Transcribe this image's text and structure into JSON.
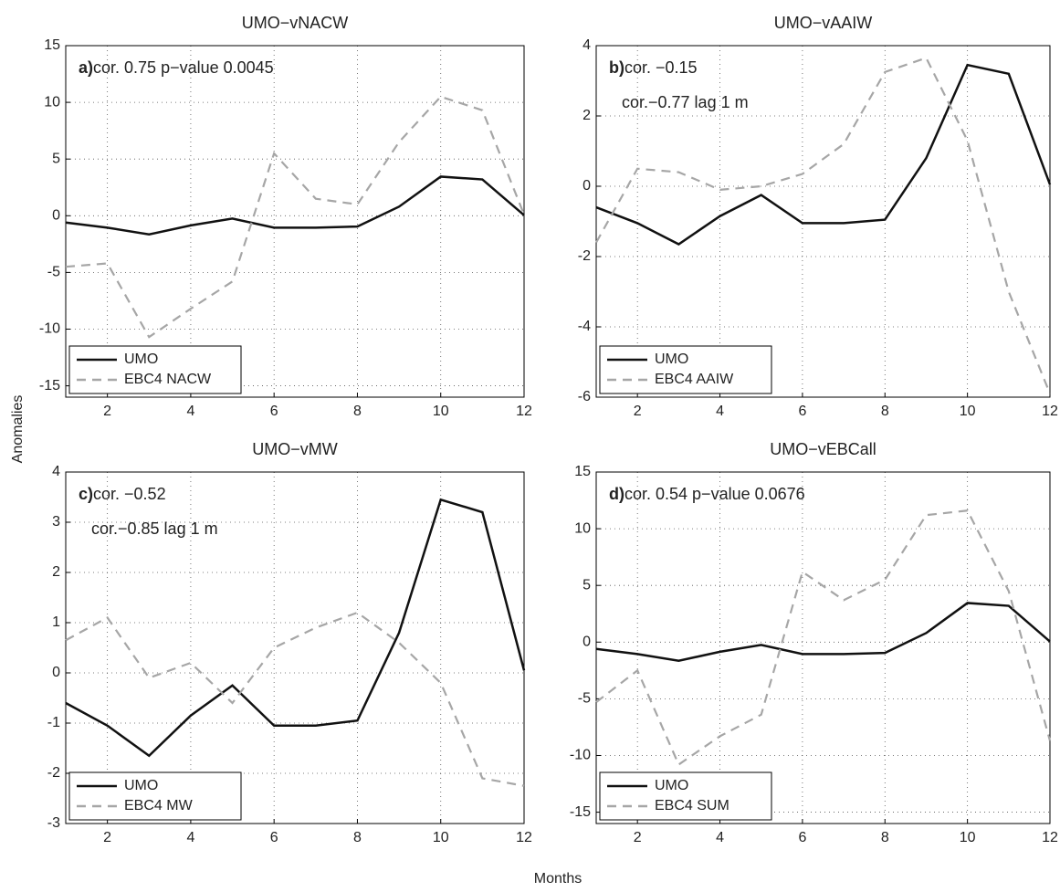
{
  "xlabel": "Months",
  "ylabel": "Anomalies",
  "chart_data": [
    {
      "type": "line",
      "title": "UMO−vNACW",
      "panel_label": "a)",
      "annotations": [
        "cor. 0.75 p−value 0.0045"
      ],
      "x": [
        1,
        2,
        3,
        4,
        5,
        6,
        7,
        8,
        9,
        10,
        11,
        12
      ],
      "xlim": [
        1,
        12
      ],
      "xticks": [
        2,
        4,
        6,
        8,
        10,
        12
      ],
      "ylim": [
        -16,
        15
      ],
      "yticks": [
        -15,
        -10,
        -5,
        0,
        5,
        10,
        15
      ],
      "grid": true,
      "legend": "lower left",
      "series": [
        {
          "name": "UMO",
          "color": "#111111",
          "linestyle": "solid",
          "values": [
            -0.6,
            -1.05,
            -1.65,
            -0.85,
            -0.25,
            -1.05,
            -1.05,
            -0.95,
            0.8,
            3.45,
            3.2,
            0.05
          ]
        },
        {
          "name": "EBC4 NACW",
          "color": "#a6a6a6",
          "linestyle": "dashed",
          "values": [
            -4.5,
            -4.2,
            -10.7,
            -8.2,
            -5.8,
            5.5,
            1.5,
            1.0,
            6.5,
            10.5,
            9.3,
            0.1
          ]
        }
      ]
    },
    {
      "type": "line",
      "title": "UMO−vAAIW",
      "panel_label": "b)",
      "annotations": [
        "cor. −0.15",
        "cor.−0.77 lag 1 m"
      ],
      "x": [
        1,
        2,
        3,
        4,
        5,
        6,
        7,
        8,
        9,
        10,
        11,
        12
      ],
      "xlim": [
        1,
        12
      ],
      "xticks": [
        2,
        4,
        6,
        8,
        10,
        12
      ],
      "ylim": [
        -6,
        4
      ],
      "yticks": [
        -6,
        -4,
        -2,
        0,
        2,
        4
      ],
      "grid": true,
      "legend": "lower left",
      "series": [
        {
          "name": "UMO",
          "color": "#111111",
          "linestyle": "solid",
          "values": [
            -0.6,
            -1.05,
            -1.65,
            -0.85,
            -0.25,
            -1.05,
            -1.05,
            -0.95,
            0.8,
            3.45,
            3.2,
            0.05
          ]
        },
        {
          "name": "EBC4 AAIW",
          "color": "#a6a6a6",
          "linestyle": "dashed",
          "values": [
            -1.6,
            0.5,
            0.4,
            -0.1,
            0.0,
            0.35,
            1.2,
            3.25,
            3.65,
            1.3,
            -3.0,
            -5.9
          ]
        }
      ]
    },
    {
      "type": "line",
      "title": "UMO−vMW",
      "panel_label": "c)",
      "annotations": [
        "cor. −0.52",
        "cor.−0.85 lag 1 m"
      ],
      "x": [
        1,
        2,
        3,
        4,
        5,
        6,
        7,
        8,
        9,
        10,
        11,
        12
      ],
      "xlim": [
        1,
        12
      ],
      "xticks": [
        2,
        4,
        6,
        8,
        10,
        12
      ],
      "ylim": [
        -3,
        4
      ],
      "yticks": [
        -3,
        -2,
        -1,
        0,
        1,
        2,
        3,
        4
      ],
      "grid": true,
      "legend": "lower left",
      "series": [
        {
          "name": "UMO",
          "color": "#111111",
          "linestyle": "solid",
          "values": [
            -0.6,
            -1.05,
            -1.65,
            -0.85,
            -0.25,
            -1.05,
            -1.05,
            -0.95,
            0.8,
            3.45,
            3.2,
            0.05
          ]
        },
        {
          "name": "EBC4 MW",
          "color": "#a6a6a6",
          "linestyle": "dashed",
          "values": [
            0.65,
            1.1,
            -0.1,
            0.2,
            -0.6,
            0.5,
            0.9,
            1.2,
            0.6,
            -0.2,
            -2.1,
            -2.25
          ]
        }
      ]
    },
    {
      "type": "line",
      "title": "UMO−vEBCall",
      "panel_label": "d)",
      "annotations": [
        "cor. 0.54 p−value 0.0676"
      ],
      "x": [
        1,
        2,
        3,
        4,
        5,
        6,
        7,
        8,
        9,
        10,
        11,
        12
      ],
      "xlim": [
        1,
        12
      ],
      "xticks": [
        2,
        4,
        6,
        8,
        10,
        12
      ],
      "ylim": [
        -16,
        15
      ],
      "yticks": [
        -15,
        -10,
        -5,
        0,
        5,
        10,
        15
      ],
      "grid": true,
      "legend": "lower left",
      "series": [
        {
          "name": "UMO",
          "color": "#111111",
          "linestyle": "solid",
          "values": [
            -0.6,
            -1.05,
            -1.65,
            -0.85,
            -0.25,
            -1.05,
            -1.05,
            -0.95,
            0.8,
            3.45,
            3.2,
            0.05
          ]
        },
        {
          "name": "EBC4 SUM",
          "color": "#a6a6a6",
          "linestyle": "dashed",
          "values": [
            -5.3,
            -2.5,
            -10.8,
            -8.3,
            -6.4,
            6.2,
            3.7,
            5.5,
            11.2,
            11.6,
            4.5,
            -8.7
          ]
        }
      ]
    }
  ]
}
